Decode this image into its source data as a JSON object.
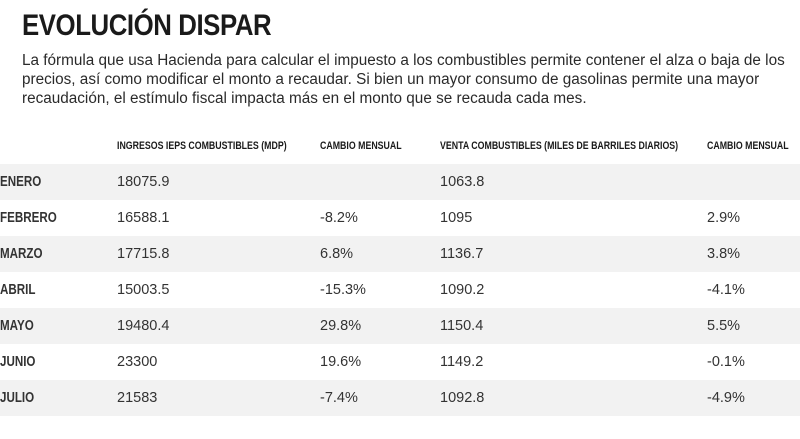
{
  "title": "EVOLUCIÓN DISPAR",
  "subtitle": "La fórmula que usa Hacienda para calcular el impuesto a los combustibles permite contener el alza o baja de los precios, así como modificar el monto a recaudar. Si bien un mayor consumo de gasolinas permite una mayor recaudación, el estímulo fiscal impacta más en el monto que se recauda cada mes.",
  "chart_data": {
    "type": "table",
    "title": "EVOLUCIÓN DISPAR",
    "columns": [
      "",
      "INGRESOS IEPS COMBUSTIBLES (MDP)",
      "CAMBIO MENSUAL",
      "VENTA COMBUSTIBLES (MILES DE BARRILES DIARIOS)",
      "CAMBIO MENSUAL"
    ],
    "rows": [
      {
        "month": "ENERO",
        "ingresos": "18075.9",
        "cambio_ingresos": "",
        "venta": "1063.8",
        "cambio_venta": ""
      },
      {
        "month": "FEBRERO",
        "ingresos": "16588.1",
        "cambio_ingresos": "-8.2%",
        "venta": "1095",
        "cambio_venta": "2.9%"
      },
      {
        "month": "MARZO",
        "ingresos": "17715.8",
        "cambio_ingresos": "6.8%",
        "venta": "1136.7",
        "cambio_venta": "3.8%"
      },
      {
        "month": "ABRIL",
        "ingresos": "15003.5",
        "cambio_ingresos": "-15.3%",
        "venta": "1090.2",
        "cambio_venta": "-4.1%"
      },
      {
        "month": "MAYO",
        "ingresos": "19480.4",
        "cambio_ingresos": "29.8%",
        "venta": "1150.4",
        "cambio_venta": "5.5%"
      },
      {
        "month": "JUNIO",
        "ingresos": "23300",
        "cambio_ingresos": "19.6%",
        "venta": "1149.2",
        "cambio_venta": "-0.1%"
      },
      {
        "month": "JULIO",
        "ingresos": "21583",
        "cambio_ingresos": "-7.4%",
        "venta": "1092.8",
        "cambio_venta": "-4.9%"
      }
    ]
  },
  "colors": {
    "stripe": "#f2f2f2",
    "text": "#222222",
    "background": "#ffffff"
  }
}
